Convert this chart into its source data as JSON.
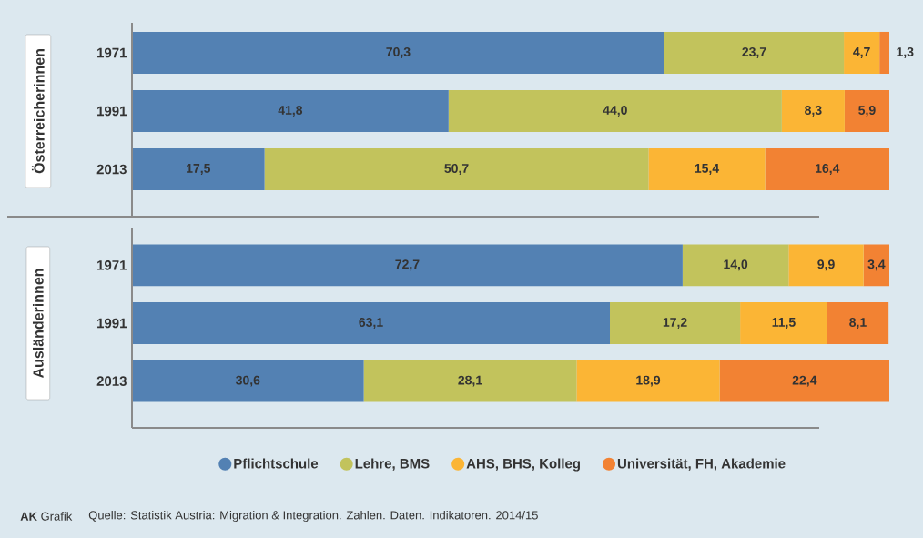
{
  "chart_data": [
    {
      "type": "bar",
      "orientation": "horizontal",
      "stacked": true,
      "ylabel": "Österreicherinnen",
      "categories": [
        "1971",
        "1991",
        "2013"
      ],
      "tick_labels": "y",
      "series": [
        {
          "color": "#5381b3",
          "values": [
            70.3,
            41.8,
            17.5
          ],
          "value_labels": [
            "70,3",
            "41,8",
            "17,5"
          ]
        },
        {
          "color": "#c2c35c",
          "values": [
            23.7,
            44.0,
            50.7
          ],
          "value_labels": [
            "23,7",
            "44,0",
            "50,7"
          ]
        },
        {
          "color": "#fbb535",
          "values": [
            4.7,
            8.3,
            15.4
          ],
          "value_labels": [
            "4,7",
            "8,3",
            "15,4"
          ]
        },
        {
          "color": "#f28233",
          "values": [
            1.3,
            5.9,
            16.4
          ],
          "value_labels": [
            "1,3",
            "5,9",
            "16,4"
          ]
        }
      ]
    },
    {
      "type": "bar",
      "orientation": "horizontal",
      "stacked": true,
      "ylabel": "Ausländerinnen",
      "categories": [
        "1971",
        "1991",
        "2013"
      ],
      "tick_labels": "y",
      "legend": "bottom",
      "series": [
        {
          "name": "Pflichtschule",
          "color": "#5381b3",
          "values": [
            72.7,
            63.1,
            30.6
          ],
          "value_labels": [
            "72,7",
            "63,1",
            "30,6"
          ]
        },
        {
          "name": "Lehre, BMS",
          "color": "#c2c35c",
          "values": [
            14.0,
            17.2,
            28.1
          ],
          "value_labels": [
            "14,0",
            "17,2",
            "28,1"
          ]
        },
        {
          "name": "AHS, BHS, Kolleg",
          "color": "#fbb535",
          "values": [
            9.9,
            11.5,
            18.9
          ],
          "value_labels": [
            "9,9",
            "11,5",
            "18,9"
          ]
        },
        {
          "name": "Universität, FH, Akademie",
          "color": "#f28233",
          "values": [
            3.4,
            8.1,
            22.4
          ],
          "value_labels": [
            "3,4",
            "8,1",
            "22,4"
          ]
        }
      ],
      "annotations": [
        "**AK** Grafik",
        "Quelle: Statistik Austria: Migration & Integration. Zahlen. Daten. Indikatoren. 2014/15"
      ]
    }
  ]
}
